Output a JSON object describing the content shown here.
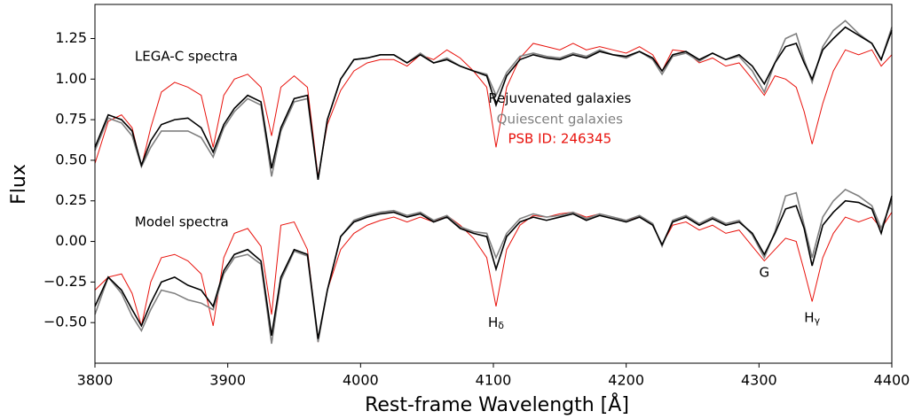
{
  "chart_data": {
    "type": "line",
    "xlabel": "Rest-frame Wavelength [Å]",
    "ylabel": "Flux",
    "xlim": [
      3800,
      4400
    ],
    "ylim": [
      -0.75,
      1.46
    ],
    "xticks": [
      3800,
      3900,
      4000,
      4100,
      4200,
      4300,
      4400
    ],
    "yticks": [
      {
        "value": -0.5,
        "label": "−0.50"
      },
      {
        "value": -0.25,
        "label": "−0.25"
      },
      {
        "value": 0,
        "label": "0.00"
      },
      {
        "value": 0.25,
        "label": "0.25"
      },
      {
        "value": 0.5,
        "label": "0.50"
      },
      {
        "value": 0.75,
        "label": "0.75"
      },
      {
        "value": 1.0,
        "label": "1.00"
      },
      {
        "value": 1.25,
        "label": "1.25"
      }
    ],
    "x": [
      3800,
      3810,
      3820,
      3828,
      3835,
      3842,
      3850,
      3860,
      3870,
      3880,
      3889,
      3897,
      3905,
      3915,
      3925,
      3933,
      3940,
      3950,
      3960,
      3968,
      3975,
      3985,
      3995,
      4005,
      4015,
      4025,
      4035,
      4045,
      4055,
      4065,
      4075,
      4085,
      4095,
      4102,
      4110,
      4120,
      4130,
      4140,
      4150,
      4160,
      4170,
      4180,
      4190,
      4200,
      4210,
      4220,
      4227,
      4235,
      4245,
      4255,
      4265,
      4275,
      4285,
      4295,
      4304,
      4312,
      4320,
      4328,
      4334,
      4340,
      4348,
      4356,
      4365,
      4375,
      4385,
      4392,
      4400
    ],
    "series": [
      {
        "name": "Rejuvenated galaxies",
        "color": "#000000",
        "values": [
          0.58,
          0.78,
          0.75,
          0.68,
          0.47,
          0.62,
          0.72,
          0.75,
          0.76,
          0.7,
          0.55,
          0.72,
          0.82,
          0.9,
          0.86,
          0.45,
          0.7,
          0.88,
          0.9,
          0.38,
          0.75,
          1.0,
          1.12,
          1.13,
          1.15,
          1.15,
          1.1,
          1.15,
          1.1,
          1.12,
          1.08,
          1.05,
          1.02,
          0.84,
          1.02,
          1.12,
          1.15,
          1.13,
          1.12,
          1.15,
          1.13,
          1.17,
          1.15,
          1.14,
          1.17,
          1.13,
          1.05,
          1.15,
          1.17,
          1.12,
          1.16,
          1.12,
          1.15,
          1.08,
          0.97,
          1.1,
          1.2,
          1.22,
          1.1,
          1.0,
          1.18,
          1.25,
          1.32,
          1.27,
          1.22,
          1.12,
          1.3
        ],
        "model_values": [
          -0.4,
          -0.22,
          -0.3,
          -0.42,
          -0.52,
          -0.38,
          -0.25,
          -0.22,
          -0.27,
          -0.3,
          -0.4,
          -0.18,
          -0.08,
          -0.05,
          -0.12,
          -0.58,
          -0.22,
          -0.05,
          -0.08,
          -0.6,
          -0.3,
          0.03,
          0.12,
          0.15,
          0.17,
          0.18,
          0.15,
          0.17,
          0.12,
          0.15,
          0.08,
          0.05,
          0.03,
          -0.17,
          0.03,
          0.12,
          0.15,
          0.13,
          0.15,
          0.17,
          0.13,
          0.16,
          0.14,
          0.12,
          0.15,
          0.1,
          -0.02,
          0.12,
          0.15,
          0.1,
          0.14,
          0.1,
          0.12,
          0.05,
          -0.08,
          0.05,
          0.2,
          0.22,
          0.08,
          -0.15,
          0.1,
          0.18,
          0.25,
          0.24,
          0.2,
          0.05,
          0.28
        ]
      },
      {
        "name": "Quiescent galaxies",
        "color": "#808080",
        "values": [
          0.56,
          0.76,
          0.73,
          0.65,
          0.46,
          0.58,
          0.68,
          0.68,
          0.68,
          0.64,
          0.52,
          0.7,
          0.8,
          0.88,
          0.84,
          0.4,
          0.68,
          0.86,
          0.88,
          0.38,
          0.75,
          1.0,
          1.12,
          1.13,
          1.15,
          1.15,
          1.1,
          1.16,
          1.1,
          1.13,
          1.08,
          1.05,
          1.03,
          0.9,
          1.04,
          1.14,
          1.16,
          1.14,
          1.13,
          1.16,
          1.14,
          1.18,
          1.15,
          1.13,
          1.17,
          1.12,
          1.03,
          1.14,
          1.16,
          1.11,
          1.16,
          1.12,
          1.14,
          1.05,
          0.92,
          1.1,
          1.25,
          1.28,
          1.12,
          0.98,
          1.2,
          1.3,
          1.36,
          1.28,
          1.22,
          1.12,
          1.32
        ],
        "model_values": [
          -0.45,
          -0.22,
          -0.32,
          -0.46,
          -0.55,
          -0.42,
          -0.3,
          -0.32,
          -0.36,
          -0.38,
          -0.42,
          -0.2,
          -0.1,
          -0.08,
          -0.14,
          -0.63,
          -0.24,
          -0.06,
          -0.09,
          -0.62,
          -0.3,
          0.03,
          0.13,
          0.16,
          0.18,
          0.19,
          0.16,
          0.18,
          0.13,
          0.16,
          0.09,
          0.06,
          0.05,
          -0.1,
          0.05,
          0.14,
          0.17,
          0.15,
          0.16,
          0.18,
          0.14,
          0.17,
          0.15,
          0.13,
          0.16,
          0.11,
          -0.03,
          0.13,
          0.16,
          0.11,
          0.15,
          0.11,
          0.13,
          0.04,
          -0.1,
          0.06,
          0.28,
          0.3,
          0.1,
          -0.1,
          0.15,
          0.25,
          0.32,
          0.28,
          0.22,
          0.08,
          0.25
        ]
      },
      {
        "name": "PSB ID: 246345",
        "color": "#e8120c",
        "values": [
          0.48,
          0.74,
          0.78,
          0.7,
          0.46,
          0.7,
          0.92,
          0.98,
          0.95,
          0.9,
          0.58,
          0.9,
          1.0,
          1.03,
          0.95,
          0.65,
          0.95,
          1.02,
          0.95,
          0.4,
          0.72,
          0.93,
          1.05,
          1.1,
          1.12,
          1.12,
          1.08,
          1.15,
          1.12,
          1.18,
          1.13,
          1.05,
          0.95,
          0.58,
          0.95,
          1.13,
          1.22,
          1.2,
          1.18,
          1.22,
          1.18,
          1.2,
          1.18,
          1.16,
          1.2,
          1.15,
          1.05,
          1.18,
          1.17,
          1.1,
          1.13,
          1.08,
          1.1,
          1.0,
          0.9,
          1.02,
          1.0,
          0.95,
          0.8,
          0.6,
          0.85,
          1.05,
          1.18,
          1.15,
          1.18,
          1.08,
          1.15
        ],
        "model_values": [
          -0.3,
          -0.22,
          -0.2,
          -0.32,
          -0.52,
          -0.25,
          -0.1,
          -0.08,
          -0.12,
          -0.2,
          -0.52,
          -0.1,
          0.05,
          0.08,
          -0.03,
          -0.45,
          0.1,
          0.12,
          -0.05,
          -0.62,
          -0.3,
          -0.05,
          0.05,
          0.1,
          0.13,
          0.15,
          0.12,
          0.15,
          0.12,
          0.16,
          0.1,
          0.02,
          -0.1,
          -0.4,
          -0.05,
          0.1,
          0.16,
          0.15,
          0.17,
          0.18,
          0.15,
          0.17,
          0.15,
          0.13,
          0.15,
          0.1,
          -0.02,
          0.1,
          0.12,
          0.07,
          0.1,
          0.05,
          0.07,
          -0.03,
          -0.12,
          -0.05,
          0.02,
          0.0,
          -0.18,
          -0.37,
          -0.1,
          0.05,
          0.15,
          0.12,
          0.15,
          0.08,
          0.18
        ]
      }
    ],
    "legend_position": {
      "x": 4150,
      "y": [
        0.88,
        0.75,
        0.63
      ]
    },
    "annotations": [
      {
        "text": "LEGA-C spectra",
        "x": 3830,
        "y": 1.14
      },
      {
        "text": "Model spectra",
        "x": 3830,
        "y": 0.12
      },
      {
        "text": "H",
        "sub": "δ",
        "x": 4102,
        "y": -0.5
      },
      {
        "text": "G",
        "x": 4304,
        "y": -0.19
      },
      {
        "text": "H",
        "sub": "γ",
        "x": 4340,
        "y": -0.47
      }
    ]
  }
}
